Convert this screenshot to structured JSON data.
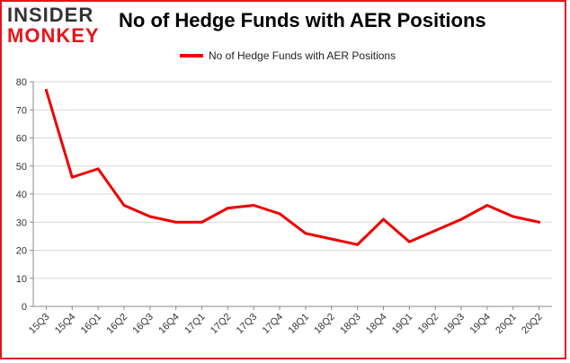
{
  "header": {
    "logo_top": "INSIDER",
    "logo_bottom": "MONKEY"
  },
  "chart_data": {
    "type": "line",
    "title": "No of Hedge Funds with AER Positions",
    "xlabel": "",
    "ylabel": "",
    "categories": [
      "15Q3",
      "15Q4",
      "16Q1",
      "16Q2",
      "16Q3",
      "16Q4",
      "17Q1",
      "17Q2",
      "17Q3",
      "17Q4",
      "18Q1",
      "18Q2",
      "18Q3",
      "18Q4",
      "19Q1",
      "19Q2",
      "19Q3",
      "19Q4",
      "20Q1",
      "20Q2"
    ],
    "series": [
      {
        "name": "No of Hedge Funds with AER Positions",
        "color": "#ee0000",
        "values": [
          77,
          46,
          49,
          36,
          32,
          30,
          30,
          35,
          36,
          33,
          26,
          24,
          22,
          31,
          23,
          27,
          31,
          36,
          32,
          30
        ]
      }
    ],
    "ylim": [
      0,
      80
    ],
    "yticks": [
      0,
      10,
      20,
      30,
      40,
      50,
      60,
      70,
      80
    ],
    "grid": true,
    "legend_position": "top-center"
  }
}
